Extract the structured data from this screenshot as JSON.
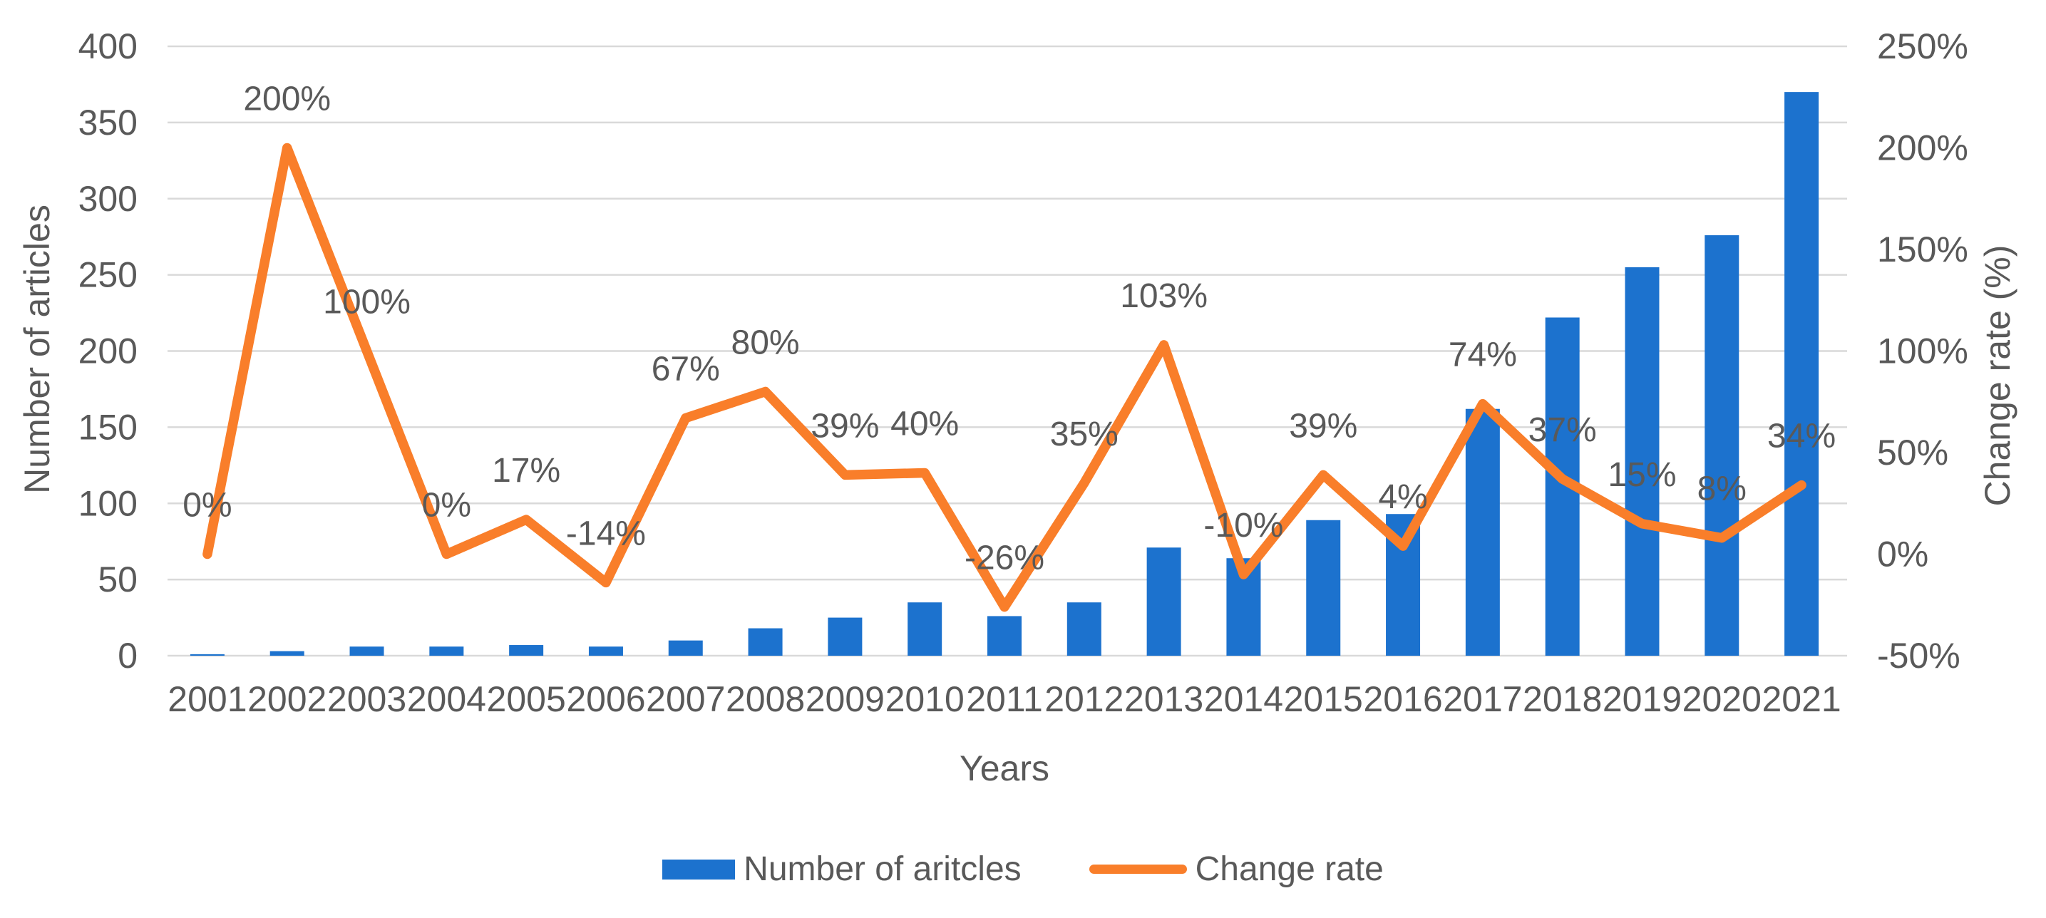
{
  "chart_data": {
    "type": "combo-bar-line",
    "title": "",
    "categories": [
      "2001",
      "2002",
      "2003",
      "2004",
      "2005",
      "2006",
      "2007",
      "2008",
      "2009",
      "2010",
      "2011",
      "2012",
      "2013",
      "2014",
      "2015",
      "2016",
      "2017",
      "2018",
      "2019",
      "2020",
      "2021"
    ],
    "series": [
      {
        "name": "Number of aritcles",
        "type": "bar",
        "axis": "left",
        "values": [
          1,
          3,
          6,
          6,
          7,
          6,
          10,
          18,
          25,
          35,
          26,
          35,
          71,
          64,
          89,
          93,
          162,
          222,
          255,
          276,
          370
        ]
      },
      {
        "name": "Change rate",
        "type": "line",
        "axis": "right",
        "values": [
          0,
          200,
          100,
          0,
          17,
          -14,
          67,
          80,
          39,
          40,
          -26,
          35,
          103,
          -10,
          39,
          4,
          74,
          37,
          15,
          8,
          34
        ],
        "point_labels": [
          "0%",
          "200%",
          "100%",
          "0%",
          "17%",
          "-14%",
          "67%",
          "80%",
          "39%",
          "40%",
          "-26%",
          "35%",
          "103%",
          "-10%",
          "39%",
          "4%",
          "74%",
          "37%",
          "15%",
          "8%",
          "34%"
        ]
      }
    ],
    "left_axis": {
      "title": "Number of articles",
      "min": 0,
      "max": 400,
      "step": 50,
      "tick_labels_top_to_bottom": [
        "400",
        "350",
        "300",
        "250",
        "200",
        "150",
        "100",
        "50",
        "0"
      ]
    },
    "right_axis": {
      "title": "Change rate (%)",
      "min": -50,
      "max": 250,
      "step": 50,
      "tick_labels_top_to_bottom": [
        "250%",
        "200%",
        "150%",
        "100%",
        "50%",
        "0%",
        "-50%"
      ]
    },
    "x_axis": {
      "title": "Years"
    },
    "legend_position": "bottom",
    "grid": true
  },
  "colors": {
    "bar": "#1c72ce",
    "line": "#f97e2a",
    "text": "#595959",
    "grid": "#d9d9d9",
    "background": "#ffffff"
  }
}
